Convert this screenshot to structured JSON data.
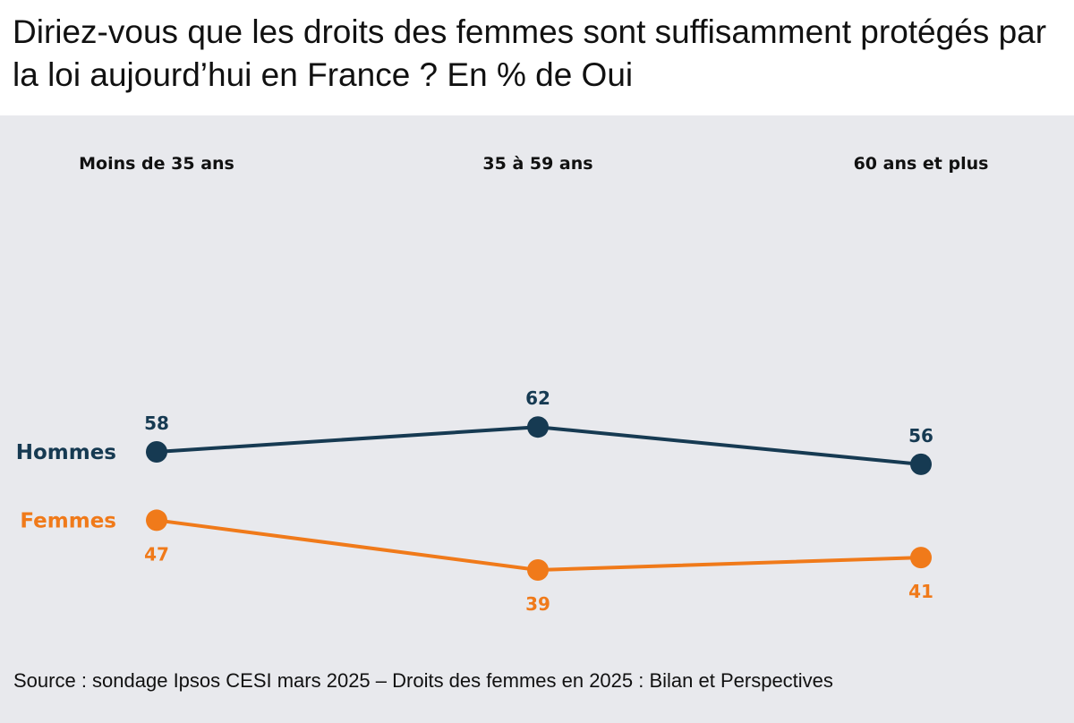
{
  "title": "Diriez-vous que les droits des femmes sont suffisamment protégés par la loi aujourd’hui en France ? En % de Oui",
  "source": "Source : sondage Ipsos CESI mars 2025 – Droits des femmes en 2025 : Bilan et Perspectives",
  "colors": {
    "background": "#e8e9ed",
    "hommes": "#163a52",
    "femmes": "#f07a1a",
    "text": "#111111"
  },
  "chart_data": {
    "type": "line",
    "title": "Diriez-vous que les droits des femmes sont suffisamment protégés par la loi aujourd’hui en France ? En % de Oui",
    "categories": [
      "Moins de 35 ans",
      "35 à 59 ans",
      "60 ans et plus"
    ],
    "series": [
      {
        "name": "Hommes",
        "values": [
          58,
          62,
          56
        ],
        "color": "#163a52",
        "label_position": "above"
      },
      {
        "name": "Femmes",
        "values": [
          47,
          39,
          41
        ],
        "color": "#f07a1a",
        "label_position": "below"
      }
    ],
    "xlabel": "",
    "ylabel": "",
    "grid": false,
    "legend": "left, inline series labels"
  }
}
